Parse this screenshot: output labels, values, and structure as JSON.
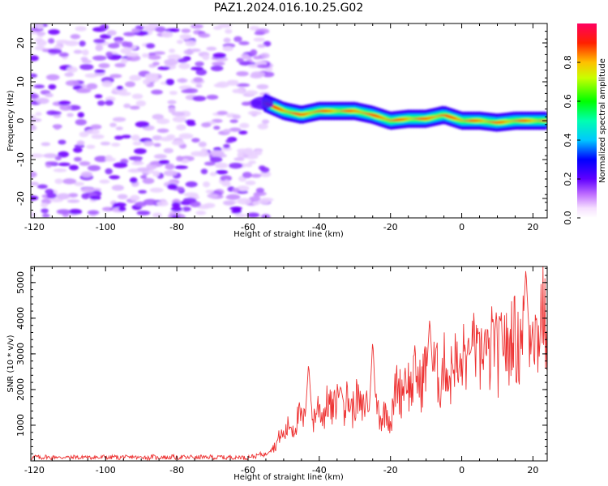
{
  "title": "PAZ1.2024.016.10.25.G02",
  "chart_data": [
    {
      "type": "heatmap",
      "xlabel": "Height of straight line (km)",
      "ylabel": "Frequency (Hz)",
      "xlim": [
        -121,
        24
      ],
      "ylim": [
        -25,
        25
      ],
      "xticks": [
        -120,
        -100,
        -80,
        -60,
        -40,
        -20,
        0,
        20
      ],
      "yticks": [
        -20,
        -10,
        0,
        10,
        20
      ],
      "colormap": [
        "#e8d0ff",
        "#7a00ff",
        "#0000ff",
        "#00ffff",
        "#00ff00",
        "#ffff00",
        "#ff0000",
        "#ff0060"
      ],
      "colorbar": {
        "label": "Normalized spectral amplitude",
        "range": [
          0,
          1
        ],
        "ticks": [
          0.0,
          0.2,
          0.4,
          0.6,
          0.8
        ]
      },
      "noise_region": {
        "x": [
          -121,
          -54
        ],
        "y": [
          -25,
          25
        ]
      },
      "signal_ridge": {
        "x": [
          -55,
          -50,
          -45,
          -40,
          -35,
          -30,
          -25,
          -20,
          -15,
          -10,
          -5,
          0,
          5,
          10,
          15,
          20,
          24
        ],
        "frequency": [
          4.5,
          2.5,
          1.5,
          2.5,
          2.5,
          2.5,
          1.5,
          0.0,
          0.5,
          0.5,
          1.5,
          0.0,
          0.0,
          -0.5,
          0.0,
          0.0,
          0.0
        ]
      }
    },
    {
      "type": "line",
      "xlabel": "Height of straight line (km)",
      "ylabel": "SNR (10 * v/v)",
      "xlim": [
        -121,
        24
      ],
      "ylim": [
        0,
        5450
      ],
      "xticks": [
        -120,
        -100,
        -80,
        -60,
        -40,
        -20,
        0,
        20
      ],
      "yticks": [
        1000,
        2000,
        3000,
        4000,
        5000
      ],
      "color": "#ee3333",
      "envelope": {
        "x": [
          -121,
          -60,
          -55,
          -52,
          -50,
          -45,
          -40,
          -35,
          -30,
          -25,
          -20,
          -18,
          -15,
          -10,
          -5,
          0,
          5,
          10,
          15,
          20,
          24
        ],
        "y": [
          100,
          100,
          200,
          500,
          800,
          1200,
          1400,
          1600,
          1600,
          1500,
          1200,
          2100,
          2200,
          2400,
          2500,
          2700,
          3000,
          3200,
          3400,
          3700,
          4000
        ]
      },
      "peaks": [
        {
          "x": -43,
          "y": 2750
        },
        {
          "x": -34,
          "y": 2100
        },
        {
          "x": -25,
          "y": 3400
        },
        {
          "x": -9,
          "y": 4000
        },
        {
          "x": 3,
          "y": 3300
        },
        {
          "x": 18,
          "y": 5400
        }
      ]
    }
  ]
}
